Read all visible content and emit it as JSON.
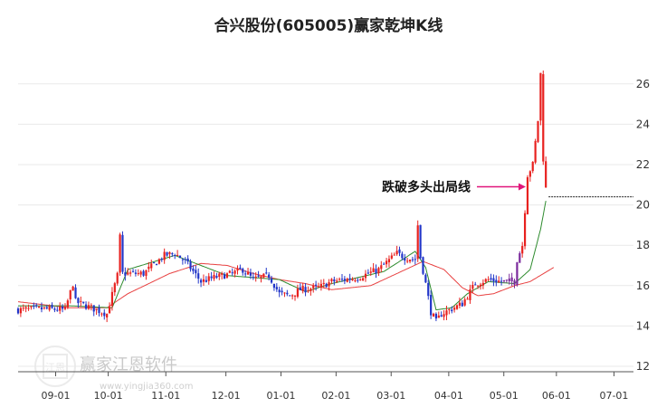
{
  "chart_data": {
    "type": "candlestick",
    "title": "合兴股份(605005)赢家乾坤K线",
    "yticks": [
      12,
      14,
      16,
      18,
      20,
      22,
      24,
      26
    ],
    "ylim": [
      12,
      27
    ],
    "xticks": [
      "09-01",
      "10-01",
      "11-01",
      "12-01",
      "01-01",
      "02-01",
      "03-01",
      "04-01",
      "05-01",
      "06-01",
      "07-01"
    ],
    "annotation": {
      "text": "跌破多头出局线",
      "value": 20.9,
      "date_index": 195
    },
    "cutoff_line_value": 20.4,
    "colors": {
      "up": "#e8211f",
      "down": "#2236c9",
      "breakout": "#7b2a9c",
      "short_ma": "#2e8b2e",
      "long_ma": "#e84040",
      "arrow": "#e0157a",
      "axis": "#555555",
      "grid": "#e9e9e9"
    },
    "price_path": [
      [
        0,
        14.8
      ],
      [
        10,
        14.85
      ],
      [
        18,
        14.8
      ],
      [
        21,
        16.1
      ],
      [
        22,
        15.2
      ],
      [
        32,
        14.7
      ],
      [
        34,
        14.6
      ],
      [
        38,
        16.5
      ],
      [
        39,
        18.4
      ],
      [
        40,
        16.6
      ],
      [
        48,
        16.6
      ],
      [
        56,
        17.5
      ],
      [
        60,
        17.6
      ],
      [
        64,
        17.2
      ],
      [
        70,
        16.2
      ],
      [
        75,
        16.4
      ],
      [
        82,
        16.6
      ],
      [
        86,
        16.8
      ],
      [
        90,
        16.3
      ],
      [
        96,
        16.5
      ],
      [
        100,
        15.6
      ],
      [
        104,
        15.5
      ],
      [
        108,
        15.8
      ],
      [
        115,
        15.9
      ],
      [
        120,
        16.2
      ],
      [
        130,
        16.4
      ],
      [
        138,
        16.8
      ],
      [
        145,
        17.6
      ],
      [
        148,
        17.4
      ],
      [
        152,
        17.3
      ],
      [
        153,
        19.0
      ],
      [
        154,
        17.4
      ],
      [
        156,
        16.1
      ],
      [
        158,
        14.7
      ],
      [
        160,
        14.2
      ],
      [
        162,
        14.6
      ],
      [
        170,
        15.1
      ],
      [
        175,
        16.1
      ],
      [
        180,
        16.3
      ],
      [
        185,
        16.2
      ],
      [
        190,
        16.2
      ],
      [
        191,
        17.3
      ],
      [
        193,
        18.0
      ],
      [
        195,
        21.5
      ],
      [
        197,
        22.0
      ],
      [
        199,
        24.2
      ],
      [
        200,
        26.5
      ],
      [
        201,
        22.3
      ],
      [
        202,
        20.8
      ]
    ],
    "short_ma_path": [
      [
        0,
        15.0
      ],
      [
        20,
        15.0
      ],
      [
        36,
        14.9
      ],
      [
        42,
        16.8
      ],
      [
        60,
        17.5
      ],
      [
        80,
        16.5
      ],
      [
        100,
        16.3
      ],
      [
        110,
        15.7
      ],
      [
        120,
        16.1
      ],
      [
        140,
        16.7
      ],
      [
        152,
        17.7
      ],
      [
        156,
        16.9
      ],
      [
        160,
        14.8
      ],
      [
        166,
        14.9
      ],
      [
        172,
        15.6
      ],
      [
        180,
        16.2
      ],
      [
        190,
        16.1
      ],
      [
        196,
        16.8
      ],
      [
        200,
        18.8
      ],
      [
        202,
        20.2
      ]
    ],
    "long_ma_path": [
      [
        0,
        15.2
      ],
      [
        20,
        14.9
      ],
      [
        34,
        14.9
      ],
      [
        42,
        15.6
      ],
      [
        58,
        16.6
      ],
      [
        70,
        17.1
      ],
      [
        80,
        17.0
      ],
      [
        90,
        16.6
      ],
      [
        100,
        16.3
      ],
      [
        110,
        16.1
      ],
      [
        120,
        15.8
      ],
      [
        135,
        16.0
      ],
      [
        145,
        16.6
      ],
      [
        155,
        17.2
      ],
      [
        163,
        16.8
      ],
      [
        170,
        15.9
      ],
      [
        176,
        15.5
      ],
      [
        182,
        15.6
      ],
      [
        190,
        16.0
      ],
      [
        196,
        16.2
      ],
      [
        205,
        16.9
      ]
    ]
  },
  "watermark": {
    "brand": "赢家江恩软件",
    "site": "www.yingjia360.com",
    "seal": "江恩"
  }
}
